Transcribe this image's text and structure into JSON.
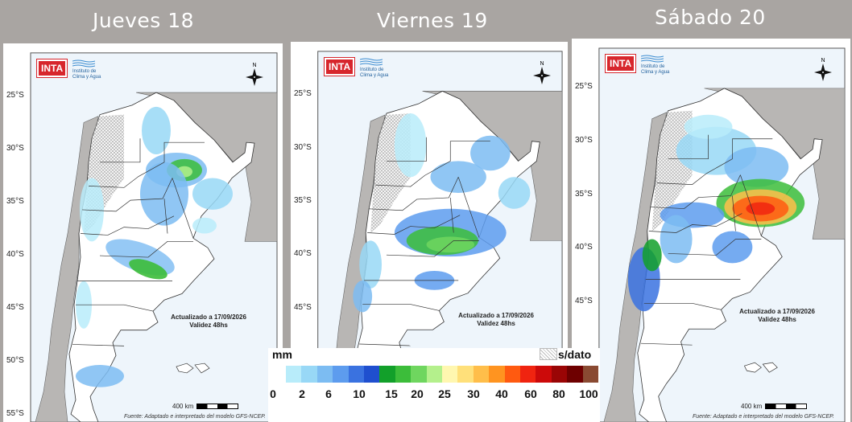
{
  "days": [
    {
      "title": "Jueves 18"
    },
    {
      "title": "Viernes 19"
    },
    {
      "title": "Sábado 20"
    }
  ],
  "map": {
    "org_logo": "INTA",
    "institute_line1": "Instituto de",
    "institute_line2": "Clima y Agua",
    "compass_label": "N",
    "latitudes": [
      "25°S",
      "30°S",
      "35°S",
      "40°S",
      "45°S",
      "50°S",
      "55°S"
    ],
    "updated": "Actualizado a 17/09/2026",
    "validity": "Validez 48hs",
    "scale": "400 km",
    "source": "Fuente: Adaptado e interpretado del modelo GFS-NCEP."
  },
  "legend": {
    "unit": "mm",
    "no_data": "s/dato",
    "colors": [
      "#b8ecfa",
      "#98d8f6",
      "#7cbcf2",
      "#5d9cee",
      "#3a72e0",
      "#1f4fcf",
      "#12a02a",
      "#3cbd3a",
      "#6fd65f",
      "#b4f08c",
      "#fff7b0",
      "#ffe07a",
      "#ffbe4a",
      "#ff9420",
      "#ff5a10",
      "#f02410",
      "#cc0a0a",
      "#9a0505",
      "#6e0000",
      "#8a4a32"
    ],
    "ticks": [
      "0",
      "2",
      "6",
      "10",
      "15",
      "20",
      "25",
      "30",
      "40",
      "60",
      "80",
      "100"
    ]
  }
}
